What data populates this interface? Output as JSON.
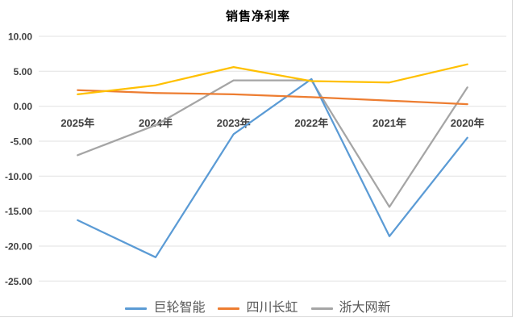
{
  "chart_data": {
    "type": "line",
    "title": "销售净利率",
    "categories": [
      "2025年",
      "2024年",
      "2023年",
      "2022年",
      "2021年",
      "2020年"
    ],
    "series": [
      {
        "name": "巨轮智能",
        "slug": "julun-zhineng",
        "color": "#5B9BD5",
        "in_legend": true,
        "values": [
          -16.3,
          -21.6,
          -4.0,
          3.9,
          -18.6,
          -4.5
        ]
      },
      {
        "name": "四川长虹",
        "slug": "sichuan-changhong",
        "color": "#ED7D31",
        "in_legend": true,
        "values": [
          2.3,
          1.9,
          1.7,
          1.3,
          0.8,
          0.3
        ]
      },
      {
        "name": "浙大网新",
        "slug": "zheda-wangxin",
        "color": "#A5A5A5",
        "in_legend": true,
        "values": [
          -7.0,
          -2.7,
          3.7,
          3.7,
          -14.4,
          2.7
        ]
      },
      {
        "name": "",
        "slug": "unlabeled-yellow",
        "color": "#FFC000",
        "in_legend": false,
        "values": [
          1.7,
          3.0,
          5.6,
          3.6,
          3.4,
          6.0
        ]
      }
    ],
    "draw_order": [
      2,
      0,
      1,
      3
    ],
    "xlabel": "",
    "ylabel": "",
    "ylim": [
      -25,
      10
    ],
    "yticks": [
      {
        "value": 10,
        "label": "10.00"
      },
      {
        "value": 5,
        "label": "5.00"
      },
      {
        "value": 0,
        "label": "0.00"
      },
      {
        "value": -5,
        "label": "-5.00"
      },
      {
        "value": -10,
        "label": "-10.00"
      },
      {
        "value": -15,
        "label": "-15.00"
      },
      {
        "value": -20,
        "label": "-20.00"
      },
      {
        "value": -25,
        "label": "-25.00"
      }
    ],
    "grid": true,
    "legend_position": "bottom",
    "x_axis_labels_position": "below-zero-line",
    "colors": {
      "grid": "#E2E2E2",
      "axis_text": "#404040",
      "legend_text": "#595959",
      "title_text": "#000000",
      "frame_border": "#D9D9D9"
    }
  }
}
